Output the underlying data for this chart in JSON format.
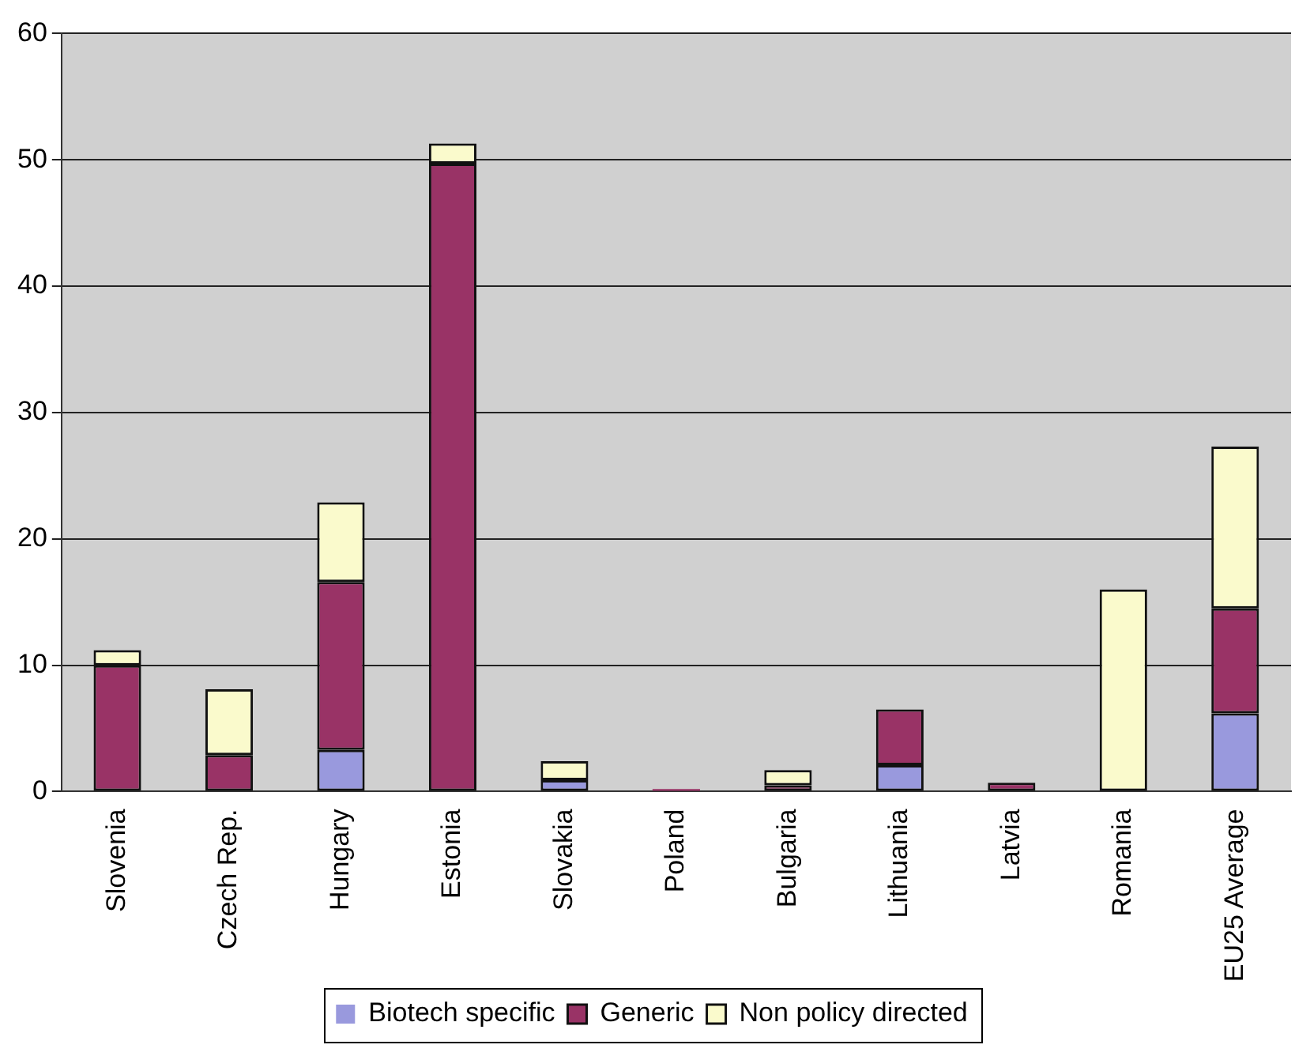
{
  "chart_data": {
    "type": "bar",
    "stacked": true,
    "categories": [
      "Slovenia",
      "Czech Rep.",
      "Hungary",
      "Estonia",
      "Slovakia",
      "Poland",
      "Bulgaria",
      "Lithuania",
      "Latvia",
      "Romania",
      "EU25 Average"
    ],
    "series": [
      {
        "name": "Biotech specific",
        "color": "#9999dd",
        "values": [
          0,
          0,
          3.3,
          0,
          0.9,
          0,
          0,
          2.1,
          0,
          0,
          6.2
        ]
      },
      {
        "name": "Generic",
        "color": "#993366",
        "values": [
          10,
          2.9,
          13.3,
          49.7,
          0,
          0.2,
          0.5,
          4.4,
          0.7,
          0,
          8.3
        ]
      },
      {
        "name": "Non policy directed",
        "color": "#fafacc",
        "values": [
          1.2,
          5.2,
          6.3,
          1.6,
          1.5,
          0,
          1.2,
          0,
          0,
          16,
          12.8
        ]
      }
    ],
    "ylim": [
      0,
      60
    ],
    "yticks": [
      0,
      10,
      20,
      30,
      40,
      50,
      60
    ],
    "grid": "y",
    "legend": "bottom"
  }
}
